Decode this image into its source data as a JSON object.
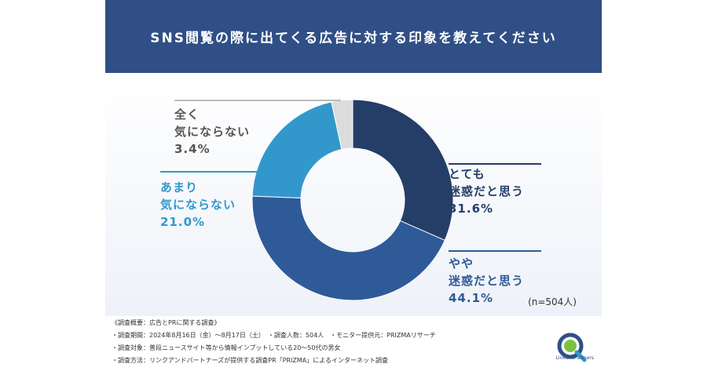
{
  "header": {
    "title": "SNS閲覧の際に出てくる広告に対する印象を教えてください"
  },
  "chart_data": {
    "type": "pie",
    "title": "SNS閲覧の際に出てくる広告に対する印象を教えてください",
    "note": "(n=504人)",
    "slices": [
      {
        "line1": "とても",
        "line2": "迷惑だと思う",
        "value": 31.6,
        "pct": "31.6%",
        "color": "#243e68",
        "label_color": "#243e68"
      },
      {
        "line1": "やや",
        "line2": "迷惑だと思う",
        "value": 44.1,
        "pct": "44.1%",
        "color": "#2e5a98",
        "label_color": "#2e5a98"
      },
      {
        "line1": "あまり",
        "line2": "気にならない",
        "value": 21.0,
        "pct": "21.0%",
        "color": "#3298cc",
        "label_color": "#3298cc"
      },
      {
        "line1": "全く",
        "line2": "気にならない",
        "value": 3.4,
        "pct": "3.4%",
        "color": "#dcdcdc",
        "label_color": "#555555"
      }
    ]
  },
  "footer": {
    "line1": "《調査概要：広告とPRに関する調査》",
    "line2": "・調査期間：2024年8月16日（金）〜8月17日（土）　・調査人数：504人　・モニター提供元：PRIZMAリサーチ",
    "line3": "・調査対象：普段ニュースサイト等から情報インプットしている20〜50代の男女",
    "line4": "・調査方法：リンクアンドパートナーズが提供する調査PR「PRIZMA」によるインターネット調査",
    "logo_text": "LinkandPartners"
  },
  "colors": {
    "header_bg": "#2f4f86"
  }
}
